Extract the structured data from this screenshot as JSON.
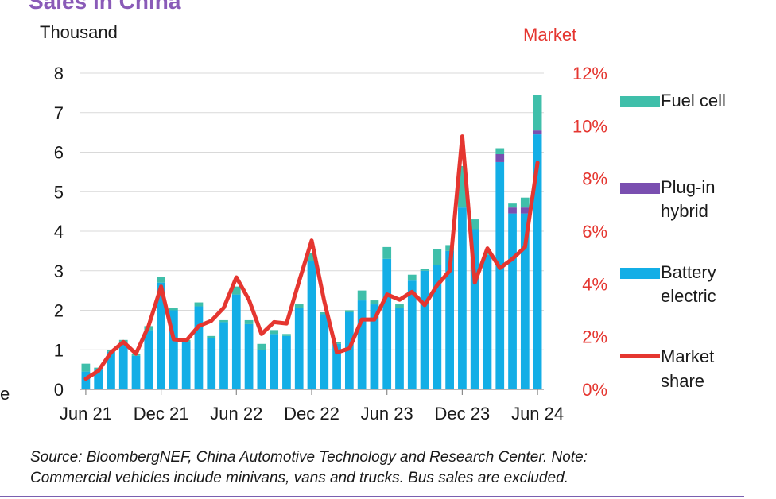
{
  "header": {
    "title_fragment": "Sales in China"
  },
  "left_edge_fragment": "e",
  "colors": {
    "battery_electric": "#13aee6",
    "plug_in_hybrid": "#7a4fb0",
    "fuel_cell": "#3fbfaa",
    "market_share": "#e53630",
    "grid": "#d9d9d9"
  },
  "chart_data": {
    "type": "bar",
    "stacked": true,
    "left_axis_unit": "Thousand",
    "right_axis_unit": "Market",
    "ylim": [
      0,
      8
    ],
    "y_ticks": [
      "0",
      "1",
      "2",
      "3",
      "4",
      "5",
      "6",
      "7",
      "8"
    ],
    "y2lim": [
      0,
      12
    ],
    "y2_ticks": [
      "0%",
      "2%",
      "4%",
      "6%",
      "8%",
      "10%",
      "12%"
    ],
    "x_tick_labels": [
      "Jun 21",
      "Dec 21",
      "Jun 22",
      "Dec 22",
      "Jun 23",
      "Dec 23",
      "Jun 24"
    ],
    "x_tick_month_index": [
      0,
      6,
      12,
      18,
      24,
      30,
      36
    ],
    "months": [
      "Jun 21",
      "Jul 21",
      "Aug 21",
      "Sep 21",
      "Oct 21",
      "Nov 21",
      "Dec 21",
      "Jan 22",
      "Feb 22",
      "Mar 22",
      "Apr 22",
      "May 22",
      "Jun 22",
      "Jul 22",
      "Aug 22",
      "Sep 22",
      "Oct 22",
      "Nov 22",
      "Dec 22",
      "Jan 23",
      "Feb 23",
      "Mar 23",
      "Apr 23",
      "May 23",
      "Jun 23",
      "Jul 23",
      "Aug 23",
      "Sep 23",
      "Oct 23",
      "Nov 23",
      "Dec 23",
      "Jan 24",
      "Feb 24",
      "Mar 24",
      "Apr 24",
      "May 24",
      "Jun 24"
    ],
    "series": [
      {
        "name": "Battery electric",
        "kind": "bar",
        "values": [
          0.45,
          0.5,
          0.95,
          1.2,
          0.85,
          1.5,
          2.7,
          2.0,
          1.2,
          2.1,
          1.3,
          1.7,
          2.4,
          1.65,
          1.0,
          1.4,
          1.35,
          2.05,
          3.25,
          1.9,
          1.15,
          1.95,
          2.25,
          2.15,
          3.3,
          2.05,
          2.75,
          3.0,
          3.15,
          3.5,
          4.6,
          4.05,
          3.4,
          5.75,
          4.45,
          4.45,
          6.45
        ]
      },
      {
        "name": "Plug-in hybrid",
        "kind": "bar",
        "values": [
          0,
          0,
          0,
          0,
          0,
          0,
          0,
          0,
          0,
          0,
          0,
          0,
          0,
          0,
          0,
          0,
          0,
          0,
          0,
          0,
          0,
          0,
          0,
          0,
          0,
          0,
          0,
          0,
          0,
          0,
          0,
          0,
          0,
          0.2,
          0.15,
          0.15,
          0.1
        ]
      },
      {
        "name": "Fuel cell",
        "kind": "bar",
        "values": [
          0.2,
          0.05,
          0.05,
          0.05,
          0.05,
          0.1,
          0.15,
          0.05,
          0.05,
          0.1,
          0.05,
          0.05,
          0.2,
          0.1,
          0.15,
          0.1,
          0.05,
          0.1,
          0.2,
          0.05,
          0.05,
          0.05,
          0.25,
          0.1,
          0.3,
          0.1,
          0.15,
          0.05,
          0.4,
          0.15,
          1.05,
          0.25,
          0.05,
          0.15,
          0.1,
          0.25,
          0.9
        ]
      },
      {
        "name": "Market share",
        "kind": "line",
        "unit": "%",
        "values": [
          0.4,
          0.7,
          1.4,
          1.8,
          1.35,
          2.4,
          3.9,
          1.9,
          1.85,
          2.4,
          2.6,
          3.1,
          4.25,
          3.4,
          2.1,
          2.55,
          2.5,
          4.1,
          5.65,
          3.35,
          1.4,
          1.55,
          2.65,
          2.65,
          3.6,
          3.4,
          3.7,
          3.2,
          3.95,
          4.5,
          9.6,
          4.05,
          5.35,
          4.6,
          4.95,
          5.4,
          8.6
        ]
      }
    ]
  },
  "legend": {
    "fuel_cell": "Fuel cell",
    "plug_in_hybrid_line1": "Plug-in",
    "plug_in_hybrid_line2": "hybrid",
    "battery_electric_line1": "Battery",
    "battery_electric_line2": "electric",
    "market_share_line1": "Market",
    "market_share_line2": "share"
  },
  "source": {
    "line1": "Source: BloombergNEF, China Automotive Technology and Research Center. Note:",
    "line2": "Commercial vehicles include minivans, vans and trucks. Bus sales are excluded."
  }
}
